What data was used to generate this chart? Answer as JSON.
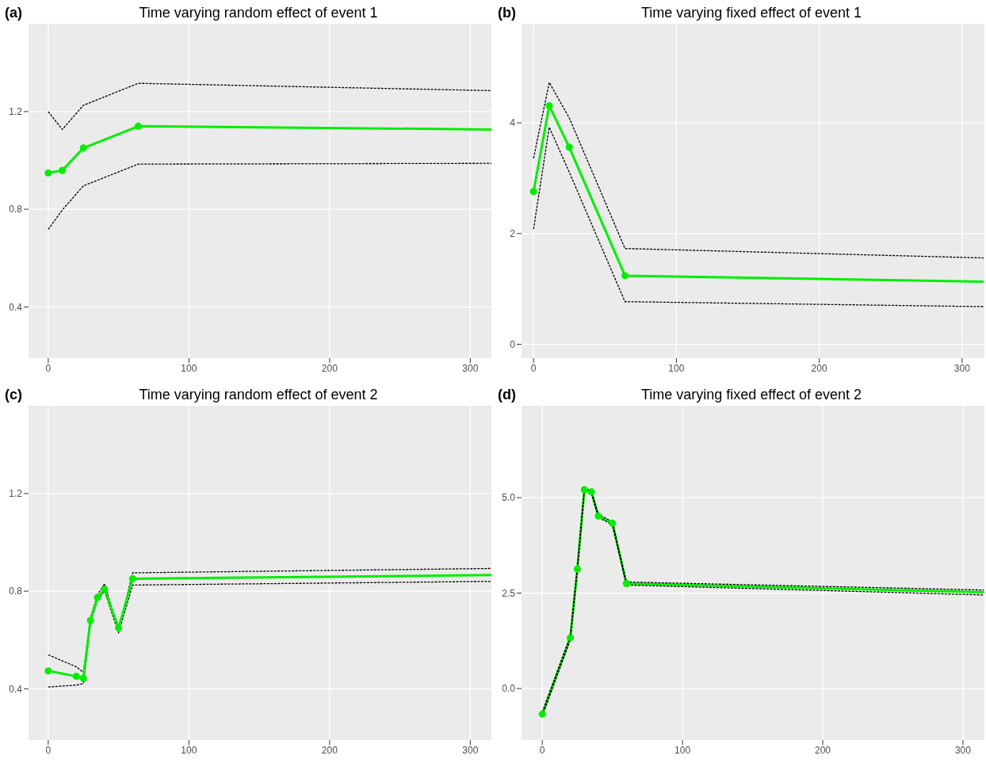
{
  "chart_data": [
    {
      "type": "line",
      "title": "Time varying random effect of event 1",
      "annotations": [
        "(a)"
      ],
      "xlim": [
        -14,
        315
      ],
      "xticks": [
        0,
        100,
        200,
        300
      ],
      "ylim": [
        0.19,
        1.56
      ],
      "yticks": [
        0.4,
        0.8,
        1.2
      ],
      "grid": true,
      "series": [
        {
          "type": "line",
          "color": "#000000",
          "line_style": "dashed",
          "marker": "none",
          "x": [
            0,
            10,
            25,
            64,
            315
          ],
          "values": [
            1.2,
            1.127,
            1.226,
            1.316,
            1.286
          ]
        },
        {
          "type": "line",
          "color": "#000000",
          "line_style": "dashed",
          "marker": "none",
          "x": [
            0,
            10,
            25,
            64,
            315
          ],
          "values": [
            0.717,
            0.797,
            0.896,
            0.985,
            0.988
          ]
        },
        {
          "type": "line",
          "color": "#00ee00",
          "line_style": "solid",
          "marker": "none",
          "x": [
            0,
            10,
            25,
            64,
            315
          ],
          "values": [
            0.949,
            0.959,
            1.051,
            1.14,
            1.127
          ]
        },
        {
          "type": "scatter",
          "color": "#00ee00",
          "marker": "circle",
          "x": [
            0,
            10,
            25,
            64
          ],
          "values": [
            0.949,
            0.959,
            1.051,
            1.14
          ]
        }
      ]
    },
    {
      "type": "line",
      "title": "Time varying fixed effect of event 1",
      "annotations": [
        "(b)"
      ],
      "xlim": [
        -8.4,
        315.6
      ],
      "xticks": [
        0,
        100,
        200,
        300
      ],
      "ylim": [
        -0.25,
        5.79
      ],
      "yticks": [
        0,
        2,
        4
      ],
      "grid": true,
      "series": [
        {
          "type": "line",
          "color": "#000000",
          "line_style": "dashed",
          "marker": "none",
          "x": [
            0,
            11,
            25,
            64,
            315
          ],
          "values": [
            3.36,
            4.73,
            4.09,
            1.73,
            1.56
          ]
        },
        {
          "type": "line",
          "color": "#000000",
          "line_style": "dashed",
          "marker": "none",
          "x": [
            0,
            11,
            25,
            64,
            315
          ],
          "values": [
            2.08,
            3.92,
            3.11,
            0.77,
            0.68
          ]
        },
        {
          "type": "line",
          "color": "#00ee00",
          "line_style": "solid",
          "marker": "none",
          "x": [
            0,
            11,
            25,
            64,
            315
          ],
          "values": [
            2.76,
            4.31,
            3.56,
            1.24,
            1.13
          ]
        },
        {
          "type": "scatter",
          "color": "#00ee00",
          "marker": "circle",
          "x": [
            0,
            11,
            25,
            64
          ],
          "values": [
            2.76,
            4.31,
            3.56,
            1.24
          ]
        }
      ]
    },
    {
      "type": "line",
      "title": "Time varying random effect of event 2",
      "annotations": [
        "(c)"
      ],
      "xlim": [
        -14,
        315
      ],
      "xticks": [
        0,
        100,
        200,
        300
      ],
      "ylim": [
        0.19,
        1.56
      ],
      "yticks": [
        0.4,
        0.8,
        1.2
      ],
      "grid": true,
      "series": [
        {
          "type": "line",
          "color": "#000000",
          "line_style": "dashed",
          "marker": "none",
          "x": [
            0,
            20,
            25,
            30,
            35,
            40,
            50,
            60,
            315
          ],
          "values": [
            0.539,
            0.49,
            0.467,
            0.69,
            0.785,
            0.83,
            0.638,
            0.875,
            0.893
          ]
        },
        {
          "type": "line",
          "color": "#000000",
          "line_style": "dashed",
          "marker": "none",
          "x": [
            0,
            20,
            25,
            30,
            35,
            40,
            50,
            60,
            315
          ],
          "values": [
            0.407,
            0.415,
            0.421,
            0.67,
            0.765,
            0.8,
            0.629,
            0.825,
            0.84
          ]
        },
        {
          "type": "line",
          "color": "#00ee00",
          "line_style": "solid",
          "marker": "none",
          "x": [
            0,
            20,
            25,
            30,
            35,
            40,
            50,
            60,
            315
          ],
          "values": [
            0.473,
            0.451,
            0.443,
            0.68,
            0.774,
            0.808,
            0.649,
            0.851,
            0.866
          ]
        },
        {
          "type": "scatter",
          "color": "#00ee00",
          "marker": "circle",
          "x": [
            0,
            20,
            25,
            30,
            35,
            40,
            50,
            60
          ],
          "values": [
            0.473,
            0.451,
            0.443,
            0.68,
            0.774,
            0.808,
            0.649,
            0.851
          ]
        }
      ]
    },
    {
      "type": "line",
      "title": "Time varying fixed effect of event 2",
      "annotations": [
        "(d)"
      ],
      "xlim": [
        -14.8,
        315.3
      ],
      "xticks": [
        0,
        100,
        200,
        300
      ],
      "ylim": [
        -1.35,
        7.41
      ],
      "yticks": [
        {
          "value": 0,
          "label": "0.0"
        },
        2.5,
        {
          "value": 5,
          "label": "5.0"
        }
      ],
      "grid": true,
      "series": [
        {
          "type": "line",
          "color": "#00ee00",
          "line_style": "solid",
          "marker": "none",
          "x": [
            0,
            20,
            25,
            30,
            35,
            40,
            50,
            60,
            315
          ],
          "values": [
            -0.67,
            1.33,
            3.13,
            5.21,
            5.15,
            4.52,
            4.33,
            2.75,
            2.52
          ]
        },
        {
          "type": "scatter",
          "color": "#00ee00",
          "marker": "circle",
          "x": [
            0,
            20,
            25,
            30,
            35,
            40,
            50,
            60
          ],
          "values": [
            -0.67,
            1.33,
            3.13,
            5.21,
            5.15,
            4.52,
            4.33,
            2.75
          ]
        },
        {
          "type": "line",
          "color": "#000000",
          "line_style": "dashed",
          "marker": "none",
          "x": [
            0,
            20,
            25,
            30,
            35,
            40,
            50,
            60,
            315
          ],
          "values": [
            -0.62,
            1.38,
            3.18,
            5.24,
            5.18,
            4.56,
            4.37,
            2.79,
            2.58
          ]
        },
        {
          "type": "line",
          "color": "#000000",
          "line_style": "dashed",
          "marker": "none",
          "x": [
            0,
            20,
            25,
            30,
            35,
            40,
            50,
            60,
            315
          ],
          "values": [
            -0.72,
            1.28,
            3.08,
            5.18,
            5.12,
            4.48,
            4.29,
            2.71,
            2.45
          ]
        }
      ]
    }
  ]
}
